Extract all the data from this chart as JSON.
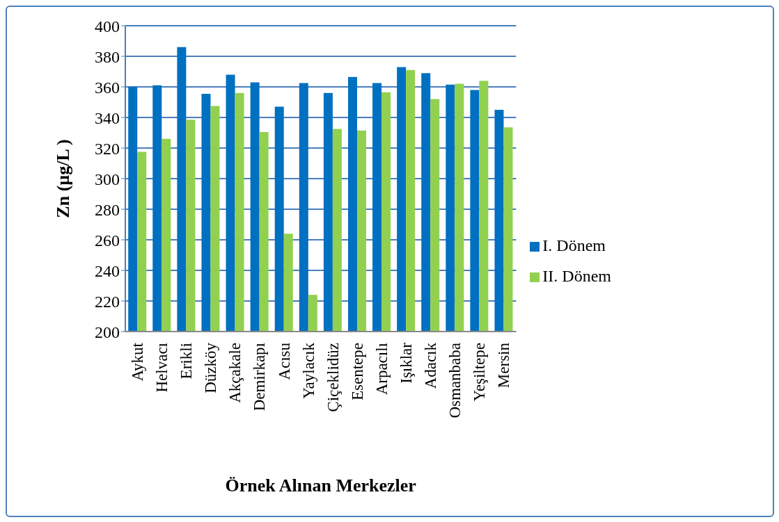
{
  "chart_data": {
    "type": "bar",
    "xlabel": "Örnek Alınan Merkezler",
    "ylabel": "Zn (µg/L )",
    "categories": [
      "Aykut",
      "Helvacı",
      "Erikli",
      "Düzköy",
      "Akçakale",
      "Demirkapı",
      "Acısu",
      "Yaylacık",
      "Çiçeklidüz",
      "Esentepe",
      "Arpacılı",
      "Işıklar",
      "Adacık",
      "Osmanbaba",
      "Yeşiltepe",
      "Mersin"
    ],
    "series": [
      {
        "name": "I. Dönem",
        "color": "#0070c0",
        "values": [
          360,
          361,
          386,
          355.5,
          368,
          363,
          347,
          362.5,
          356,
          366.5,
          362.5,
          373,
          369,
          361.5,
          358,
          345
        ]
      },
      {
        "name": "II. Dönem",
        "color": "#92d050",
        "values": [
          317.5,
          326,
          338.5,
          347.5,
          356,
          330.5,
          264,
          224,
          332.5,
          331.5,
          356.5,
          371,
          352,
          362,
          364,
          333.5
        ]
      }
    ],
    "ylim": [
      200,
      400
    ],
    "yticks": [
      200,
      220,
      240,
      260,
      280,
      300,
      320,
      340,
      360,
      380,
      400
    ],
    "grid": "y",
    "legend": "right"
  }
}
